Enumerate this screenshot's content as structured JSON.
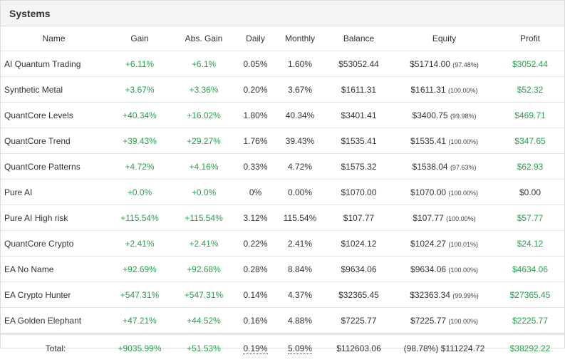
{
  "panel": {
    "title": "Systems"
  },
  "columns": [
    "Name",
    "Gain",
    "Abs. Gain",
    "Daily",
    "Monthly",
    "Balance",
    "Equity",
    "Profit"
  ],
  "rows": [
    {
      "name": "AI Quantum Trading",
      "gain": "+6.11%",
      "abs_gain": "+6.1%",
      "daily": "0.05%",
      "monthly": "1.60%",
      "balance": "$53052.44",
      "equity": "$51714.00",
      "equity_pct": "(97.48%)",
      "profit": "$3052.44",
      "profit_positive": true
    },
    {
      "name": "Synthetic Metal",
      "gain": "+3.67%",
      "abs_gain": "+3.36%",
      "daily": "0.20%",
      "monthly": "3.67%",
      "balance": "$1611.31",
      "equity": "$1611.31",
      "equity_pct": "(100.00%)",
      "profit": "$52.32",
      "profit_positive": true
    },
    {
      "name": "QuantCore Levels",
      "gain": "+40.34%",
      "abs_gain": "+16.02%",
      "daily": "1.80%",
      "monthly": "40.34%",
      "balance": "$3401.41",
      "equity": "$3400.75",
      "equity_pct": "(99.98%)",
      "profit": "$469.71",
      "profit_positive": true
    },
    {
      "name": "QuantCore Trend",
      "gain": "+39.43%",
      "abs_gain": "+29.27%",
      "daily": "1.76%",
      "monthly": "39.43%",
      "balance": "$1535.41",
      "equity": "$1535.41",
      "equity_pct": "(100.00%)",
      "profit": "$347.65",
      "profit_positive": true
    },
    {
      "name": "QuantCore Patterns",
      "gain": "+4.72%",
      "abs_gain": "+4.16%",
      "daily": "0.33%",
      "monthly": "4.72%",
      "balance": "$1575.32",
      "equity": "$1538.04",
      "equity_pct": "(97.63%)",
      "profit": "$62.93",
      "profit_positive": true
    },
    {
      "name": "Pure AI",
      "gain": "+0.0%",
      "abs_gain": "+0.0%",
      "daily": "0%",
      "monthly": "0.00%",
      "balance": "$1070.00",
      "equity": "$1070.00",
      "equity_pct": "(100.00%)",
      "profit": "$0.00",
      "profit_positive": false
    },
    {
      "name": "Pure AI High risk",
      "gain": "+115.54%",
      "abs_gain": "+115.54%",
      "daily": "3.12%",
      "monthly": "115.54%",
      "balance": "$107.77",
      "equity": "$107.77",
      "equity_pct": "(100.00%)",
      "profit": "$57.77",
      "profit_positive": true
    },
    {
      "name": "QuantCore Crypto",
      "gain": "+2.41%",
      "abs_gain": "+2.41%",
      "daily": "0.22%",
      "monthly": "2.41%",
      "balance": "$1024.12",
      "equity": "$1024.27",
      "equity_pct": "(100.01%)",
      "profit": "$24.12",
      "profit_positive": true
    },
    {
      "name": "EA No Name",
      "gain": "+92.69%",
      "abs_gain": "+92.68%",
      "daily": "0.28%",
      "monthly": "8.84%",
      "balance": "$9634.06",
      "equity": "$9634.06",
      "equity_pct": "(100.00%)",
      "profit": "$4634.06",
      "profit_positive": true
    },
    {
      "name": "EA Crypto Hunter",
      "gain": "+547.31%",
      "abs_gain": "+547.31%",
      "daily": "0.14%",
      "monthly": "4.37%",
      "balance": "$32365.45",
      "equity": "$32363.34",
      "equity_pct": "(99.99%)",
      "profit": "$27365.45",
      "profit_positive": true
    },
    {
      "name": "EA Golden Elephant",
      "gain": "+47.21%",
      "abs_gain": "+44.52%",
      "daily": "0.16%",
      "monthly": "4.88%",
      "balance": "$7225.77",
      "equity": "$7225.77",
      "equity_pct": "(100.00%)",
      "profit": "$2225.77",
      "profit_positive": true
    }
  ],
  "total": {
    "label": "Total:",
    "gain": "+9035.99%",
    "abs_gain": "+51.53%",
    "daily": "0.19%",
    "monthly": "5.09%",
    "balance": "$112603.06",
    "equity": "(98.78%) $111224.72",
    "profit": "$38292.22"
  },
  "colors": {
    "positive": "#22a34a",
    "header_bg": "#f4f4f4",
    "border": "#dcdcdc"
  }
}
